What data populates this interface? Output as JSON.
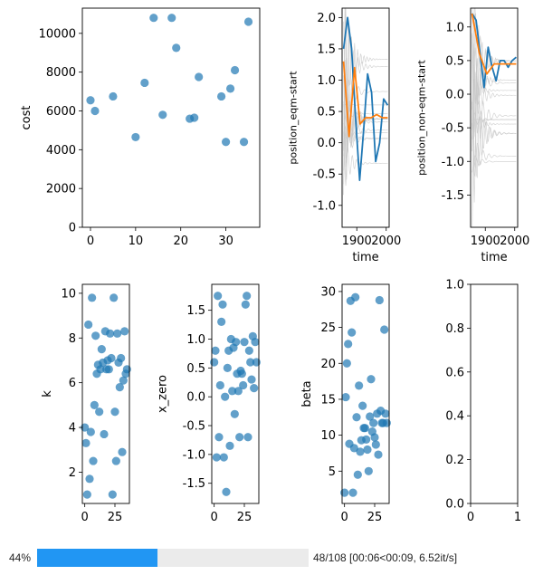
{
  "chart_data": [
    {
      "type": "scatter",
      "xlabel": "",
      "ylabel": "cost",
      "xlim": [
        -1.8,
        37.5
      ],
      "ylim": [
        0,
        11300
      ],
      "xticks": [
        0,
        10,
        20,
        30
      ],
      "yticks": [
        0,
        2000,
        4000,
        6000,
        8000,
        10000
      ],
      "x": [
        0,
        1,
        5,
        10,
        12,
        14,
        16,
        18,
        19,
        22,
        23,
        24,
        29,
        30,
        31,
        32,
        34,
        35
      ],
      "y": [
        6550,
        6000,
        6750,
        4650,
        7450,
        10800,
        5800,
        10800,
        9250,
        5600,
        5650,
        7750,
        6750,
        4400,
        7150,
        8100,
        4400,
        10600
      ]
    },
    {
      "type": "line",
      "xlabel": "time",
      "ylabel": "position_eqm-start",
      "xlim": [
        1850,
        2010
      ],
      "ylim": [
        -1.35,
        2.15
      ],
      "xticks": [
        1900,
        2000
      ],
      "yticks": [
        -1.0,
        -0.5,
        0.0,
        0.5,
        1.0,
        1.5,
        2.0
      ],
      "t_range": [
        1855,
        2005
      ],
      "series": [
        {
          "color": "#1f77b4",
          "values": [
            1.5,
            2.0,
            1.5,
            0.4,
            -0.6,
            0.2,
            1.1,
            0.8,
            -0.3,
            0.0,
            0.7,
            0.6
          ]
        },
        {
          "color": "#ff7f0e",
          "values": [
            1.3,
            0.1,
            1.2,
            0.3,
            0.4,
            0.4,
            0.45,
            0.4,
            0.4
          ]
        }
      ]
    },
    {
      "type": "line",
      "xlabel": "time",
      "ylabel": "position_non-eqm-start",
      "xlim": [
        1850,
        2010
      ],
      "ylim": [
        -1.98,
        1.28
      ],
      "xticks": [
        1900,
        2000
      ],
      "yticks": [
        -1.5,
        -1.0,
        -0.5,
        0.0,
        0.5,
        1.0
      ],
      "t_range": [
        1855,
        2005
      ],
      "series": [
        {
          "color": "#1f77b4",
          "values": [
            1.2,
            1.1,
            0.6,
            0.1,
            0.7,
            0.4,
            0.2,
            0.5,
            0.5,
            0.4,
            0.5,
            0.55
          ]
        },
        {
          "color": "#ff7f0e",
          "values": [
            1.2,
            0.6,
            0.3,
            0.45,
            0.45,
            0.45,
            0.45
          ]
        }
      ]
    },
    {
      "type": "scatter",
      "xlabel": "",
      "ylabel": "k",
      "xlim": [
        -2,
        37
      ],
      "ylim": [
        0.6,
        10.4
      ],
      "xticks": [
        0,
        25
      ],
      "yticks": [
        2,
        4,
        6,
        8,
        10
      ],
      "x": [
        0,
        1,
        2,
        3,
        4,
        5,
        6,
        7,
        8,
        9,
        10,
        11,
        12,
        13,
        14,
        15,
        16,
        17,
        18,
        19,
        20,
        21,
        22,
        23,
        24,
        25,
        26,
        27,
        28,
        29,
        30,
        31,
        32,
        33,
        34,
        35
      ],
      "y": [
        4.0,
        3.3,
        1.0,
        8.6,
        1.7,
        3.8,
        9.8,
        2.5,
        5.0,
        8.1,
        6.4,
        6.8,
        4.7,
        6.6,
        7.5,
        6.9,
        3.7,
        8.3,
        6.6,
        7.0,
        6.6,
        8.2,
        7.1,
        1.0,
        9.8,
        4.7,
        2.5,
        8.2,
        6.9,
        5.8,
        7.1,
        2.9,
        6.1,
        8.3,
        6.4,
        6.6
      ]
    },
    {
      "type": "scatter",
      "xlabel": "",
      "ylabel": "x_zero",
      "xlim": [
        -2,
        37
      ],
      "ylim": [
        -1.85,
        1.95
      ],
      "xticks": [
        0,
        25
      ],
      "yticks": [
        -1.5,
        -1.0,
        -0.5,
        0.0,
        0.5,
        1.0,
        1.5
      ],
      "x": [
        0,
        1,
        2,
        3,
        4,
        5,
        6,
        7,
        8,
        9,
        10,
        11,
        12,
        13,
        14,
        15,
        16,
        17,
        18,
        19,
        20,
        21,
        22,
        23,
        24,
        25,
        26,
        27,
        28,
        29,
        30,
        31,
        32,
        33,
        34,
        35
      ],
      "y": [
        0.6,
        0.8,
        -1.05,
        1.75,
        -0.7,
        0.2,
        1.3,
        1.6,
        -1.05,
        0.0,
        -1.65,
        0.5,
        0.8,
        -0.85,
        1.0,
        0.1,
        0.85,
        -0.3,
        0.95,
        0.4,
        0.1,
        -0.7,
        0.45,
        0.4,
        0.2,
        0.95,
        1.6,
        1.75,
        -0.7,
        0.8,
        0.6,
        0.3,
        1.05,
        0.15,
        0.95,
        0.6
      ]
    },
    {
      "type": "scatter",
      "xlabel": "",
      "ylabel": "beta",
      "xlim": [
        -2,
        37
      ],
      "ylim": [
        0.5,
        31
      ],
      "xticks": [
        0,
        25
      ],
      "yticks": [
        5,
        10,
        15,
        20,
        25,
        30
      ],
      "x": [
        0,
        1,
        2,
        3,
        4,
        5,
        6,
        7,
        8,
        9,
        10,
        11,
        12,
        13,
        14,
        15,
        16,
        17,
        18,
        19,
        20,
        21,
        22,
        23,
        24,
        25,
        26,
        27,
        28,
        29,
        30,
        31,
        32,
        33,
        34,
        35
      ],
      "y": [
        2.0,
        15.3,
        20.0,
        22.7,
        8.8,
        28.7,
        24.3,
        2.0,
        8.2,
        29.2,
        12.5,
        4.5,
        16.9,
        7.7,
        9.3,
        14.1,
        11.0,
        11.0,
        9.4,
        8.0,
        5.0,
        12.6,
        17.8,
        10.5,
        11.7,
        9.7,
        8.7,
        13.0,
        7.3,
        28.8,
        13.4,
        11.7,
        11.7,
        24.7,
        13.0,
        11.7
      ]
    },
    {
      "type": "empty",
      "xlabel": "",
      "ylabel": "",
      "xlim": [
        0,
        1
      ],
      "ylim": [
        0,
        1
      ],
      "xticks": [
        0,
        1
      ],
      "yticks": [
        0.0,
        0.2,
        0.4,
        0.6,
        0.8,
        1.0
      ]
    }
  ],
  "progress": {
    "percent_label": "44%",
    "fraction": 0.444,
    "status": "48/108 [00:06<00:09, 6.52it/s]",
    "color": "#2196f3"
  }
}
